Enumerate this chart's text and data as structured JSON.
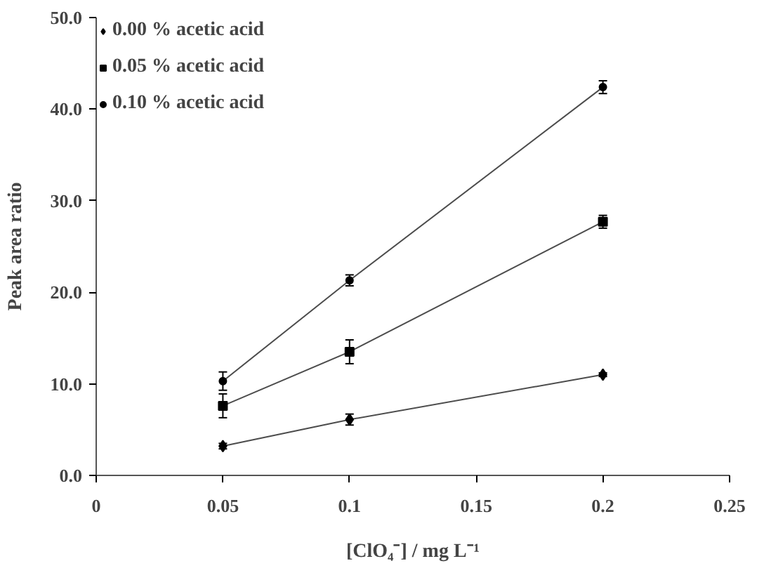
{
  "chart_data": {
    "type": "line",
    "xlabel": "[ClO₄⁻] / mg L⁻¹",
    "ylabel": "Peak area ratio",
    "x": [
      0.05,
      0.1,
      0.2
    ],
    "series": [
      {
        "name": "0.00 % acetic acid",
        "color": "#000000",
        "marker": "diamond",
        "values": [
          3.2,
          6.1,
          11.0
        ],
        "errors": [
          0.3,
          0.6,
          0.2
        ]
      },
      {
        "name": "0.05 % acetic acid",
        "color": "#000000",
        "marker": "square",
        "values": [
          7.6,
          13.5,
          27.7
        ],
        "errors": [
          1.3,
          1.3,
          0.7
        ]
      },
      {
        "name": "0.10 % acetic acid",
        "color": "#000000",
        "marker": "circle",
        "values": [
          10.3,
          21.3,
          42.4
        ],
        "errors": [
          1.0,
          0.6,
          0.7
        ]
      }
    ],
    "xlim": [
      0,
      0.25
    ],
    "xticks": [
      0,
      0.05,
      0.1,
      0.15,
      0.2,
      0.25
    ],
    "ylim": [
      0,
      50
    ],
    "yticks": [
      {
        "value": 0,
        "label": "0.0"
      },
      {
        "value": 10,
        "label": "10.0"
      },
      {
        "value": 20,
        "label": "20.0"
      },
      {
        "value": 30,
        "label": "30.0"
      },
      {
        "value": 40,
        "label": "40.0"
      },
      {
        "value": 50,
        "label": "50.0"
      }
    ],
    "grid": false,
    "legend": "top left",
    "line_style": "solid"
  }
}
